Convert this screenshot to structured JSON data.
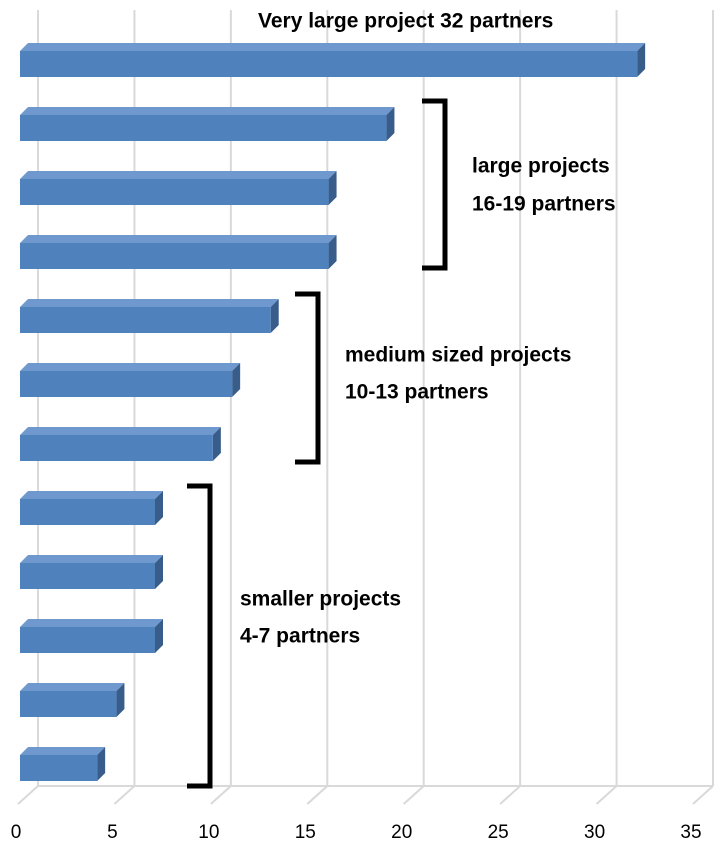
{
  "chart_data": {
    "type": "bar",
    "orientation": "horizontal",
    "categories": [
      null,
      null,
      null,
      null,
      null,
      null,
      null,
      null,
      null,
      null,
      null,
      null
    ],
    "values": [
      32,
      19,
      16,
      16,
      13,
      11,
      10,
      7,
      7,
      7,
      5,
      4
    ],
    "color": "#4f81bd",
    "xlim": [
      0,
      35
    ],
    "xticks": [
      0,
      5,
      10,
      15,
      20,
      25,
      30,
      35
    ],
    "grid": true,
    "annotations": [
      "Very large project 32 partners",
      "large projects",
      "16-19 partners",
      "medium sized projects",
      "10-13 partners",
      "smaller projects",
      "4-7 partners"
    ]
  }
}
